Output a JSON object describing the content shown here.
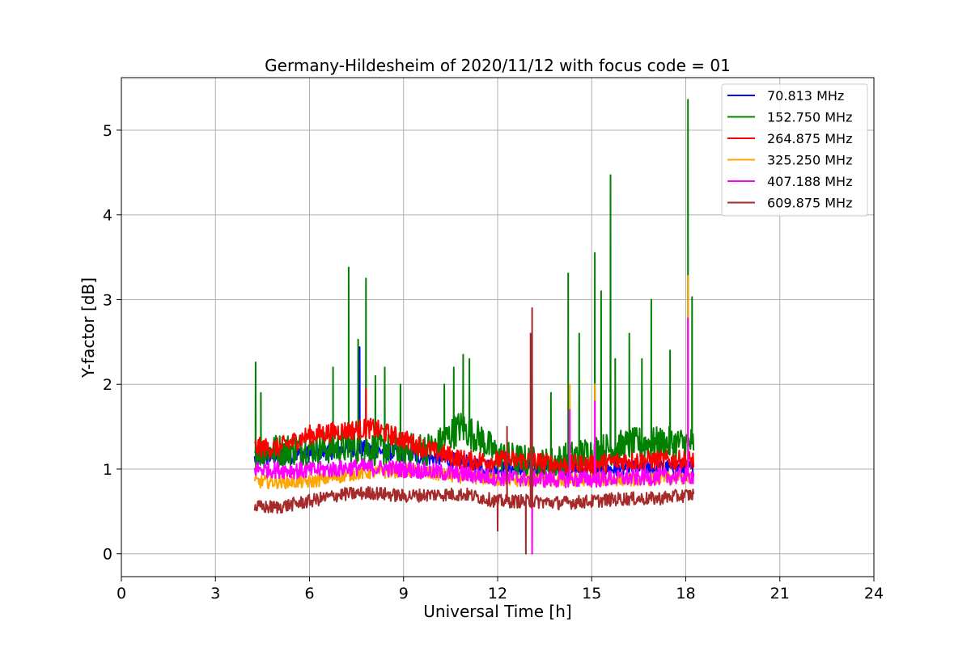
{
  "chart_data": {
    "type": "line",
    "title": "Germany-Hildesheim of 2020/11/12 with focus code = 01",
    "xlabel": "Universal Time [h]",
    "ylabel": "Y-factor [dB]",
    "xlim": [
      0,
      24
    ],
    "ylim": [
      -0.27,
      5.62
    ],
    "xticks": [
      0,
      3,
      6,
      9,
      12,
      15,
      18,
      21,
      24
    ],
    "yticks": [
      0,
      1,
      2,
      3,
      4,
      5
    ],
    "grid": true,
    "legend_position": "top-right",
    "series": [
      {
        "name": "70.813 MHz",
        "color": "#0000ff",
        "base": [
          [
            4.25,
            1.12
          ],
          [
            6,
            1.18
          ],
          [
            7.5,
            1.25
          ],
          [
            9,
            1.18
          ],
          [
            10.5,
            1.1
          ],
          [
            12,
            1.0
          ],
          [
            13.5,
            1.0
          ],
          [
            15,
            1.0
          ],
          [
            16.5,
            1.0
          ],
          [
            18.25,
            1.02
          ]
        ],
        "band": 0.1,
        "spikes": [
          [
            7.6,
            2.44
          ],
          [
            15.1,
            1.4
          ],
          [
            16.6,
            1.3
          ]
        ]
      },
      {
        "name": "152.750 MHz",
        "color": "#008000",
        "base": [
          [
            4.25,
            1.2
          ],
          [
            6,
            1.25
          ],
          [
            7.5,
            1.25
          ],
          [
            9,
            1.22
          ],
          [
            10,
            1.25
          ],
          [
            10.8,
            1.5
          ],
          [
            11.5,
            1.35
          ],
          [
            12,
            1.15
          ],
          [
            13.5,
            1.05
          ],
          [
            15,
            1.2
          ],
          [
            16.5,
            1.3
          ],
          [
            18.25,
            1.3
          ]
        ],
        "band": 0.2,
        "spikes": [
          [
            4.28,
            2.26
          ],
          [
            4.45,
            1.9
          ],
          [
            6.75,
            2.2
          ],
          [
            7.25,
            3.38
          ],
          [
            7.55,
            2.53
          ],
          [
            7.8,
            3.25
          ],
          [
            8.1,
            2.1
          ],
          [
            8.4,
            2.2
          ],
          [
            8.9,
            2.0
          ],
          [
            10.3,
            2.0
          ],
          [
            10.6,
            2.2
          ],
          [
            10.9,
            2.35
          ],
          [
            11.1,
            2.3
          ],
          [
            13.7,
            1.9
          ],
          [
            14.25,
            3.31
          ],
          [
            14.6,
            2.6
          ],
          [
            15.1,
            3.55
          ],
          [
            15.3,
            3.1
          ],
          [
            15.6,
            4.47
          ],
          [
            15.75,
            2.3
          ],
          [
            16.2,
            2.6
          ],
          [
            16.6,
            2.3
          ],
          [
            16.9,
            3.0
          ],
          [
            17.5,
            2.4
          ],
          [
            18.07,
            5.36
          ],
          [
            18.2,
            3.03
          ]
        ]
      },
      {
        "name": "264.875 MHz",
        "color": "#ff0000",
        "base": [
          [
            4.25,
            1.25
          ],
          [
            5,
            1.25
          ],
          [
            6,
            1.4
          ],
          [
            7,
            1.45
          ],
          [
            8,
            1.48
          ],
          [
            9,
            1.35
          ],
          [
            10,
            1.2
          ],
          [
            11,
            1.1
          ],
          [
            12,
            1.1
          ],
          [
            13,
            1.1
          ],
          [
            14,
            1.05
          ],
          [
            15,
            1.05
          ],
          [
            16,
            1.1
          ],
          [
            17,
            1.1
          ],
          [
            18.25,
            1.1
          ]
        ],
        "band": 0.12,
        "spikes": [
          [
            7.8,
            1.95
          ]
        ]
      },
      {
        "name": "325.250 MHz",
        "color": "#ffa500",
        "base": [
          [
            4.25,
            0.85
          ],
          [
            6,
            0.85
          ],
          [
            7.5,
            0.95
          ],
          [
            9,
            0.98
          ],
          [
            10.5,
            0.92
          ],
          [
            12,
            0.88
          ],
          [
            13.5,
            0.86
          ],
          [
            15,
            0.88
          ],
          [
            16.5,
            0.88
          ],
          [
            18.25,
            0.9
          ]
        ],
        "band": 0.08,
        "spikes": [
          [
            14.3,
            2.0
          ],
          [
            15.1,
            2.0
          ],
          [
            18.07,
            3.28
          ],
          [
            13.1,
            0.0
          ]
        ]
      },
      {
        "name": "407.188 MHz",
        "color": "#ff00ff",
        "base": [
          [
            4.25,
            1.0
          ],
          [
            6,
            0.98
          ],
          [
            7.5,
            1.02
          ],
          [
            9,
            1.0
          ],
          [
            10.5,
            0.95
          ],
          [
            12,
            0.9
          ],
          [
            13.5,
            0.88
          ],
          [
            15,
            0.88
          ],
          [
            16.5,
            0.9
          ],
          [
            18.25,
            0.92
          ]
        ],
        "band": 0.1,
        "spikes": [
          [
            14.3,
            1.7
          ],
          [
            15.1,
            1.8
          ],
          [
            18.07,
            2.78
          ],
          [
            13.1,
            0.0
          ]
        ]
      },
      {
        "name": "609.875 MHz",
        "color": "#a52a2a",
        "base": [
          [
            4.25,
            0.55
          ],
          [
            5,
            0.55
          ],
          [
            6,
            0.62
          ],
          [
            7,
            0.7
          ],
          [
            8,
            0.72
          ],
          [
            9,
            0.68
          ],
          [
            10,
            0.7
          ],
          [
            11,
            0.7
          ],
          [
            12,
            0.62
          ],
          [
            13,
            0.62
          ],
          [
            14,
            0.6
          ],
          [
            15,
            0.62
          ],
          [
            16,
            0.65
          ],
          [
            17,
            0.65
          ],
          [
            18.25,
            0.7
          ]
        ],
        "band": 0.08,
        "spikes": [
          [
            12.0,
            0.27
          ],
          [
            12.9,
            0.0
          ],
          [
            13.1,
            2.9
          ],
          [
            13.05,
            2.6
          ],
          [
            12.3,
            1.5
          ]
        ]
      }
    ]
  }
}
